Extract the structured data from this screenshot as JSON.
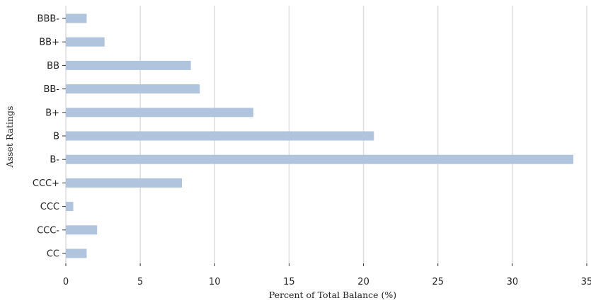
{
  "chart_data": {
    "type": "bar",
    "orientation": "horizontal",
    "categories": [
      "BBB-",
      "BB+",
      "BB",
      "BB-",
      "B+",
      "B",
      "B-",
      "CCC+",
      "CCC",
      "CCC-",
      "CC"
    ],
    "values": [
      1.4,
      2.6,
      8.4,
      9.0,
      12.6,
      20.7,
      34.1,
      7.8,
      0.5,
      2.1,
      1.4
    ],
    "title": "",
    "xlabel": "Percent of Total Balance (%)",
    "ylabel": "Asset Ratings",
    "xlim": [
      0,
      35
    ],
    "xticks": [
      0,
      5,
      10,
      15,
      20,
      25,
      30,
      35
    ],
    "grid": "vertical",
    "legend": "none",
    "bar_color": "#b0c4de",
    "grid_color": "#dddddd"
  }
}
